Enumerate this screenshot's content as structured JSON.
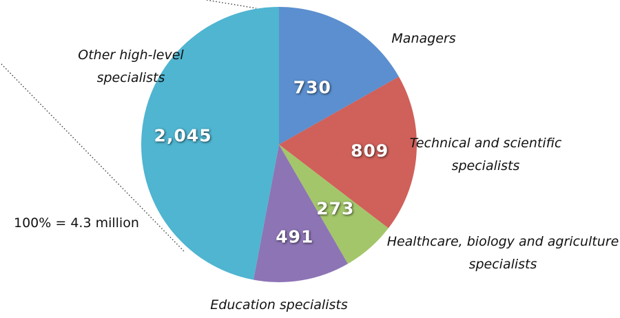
{
  "chart_data": {
    "type": "pie",
    "categories": [
      "Managers",
      "Technical and scientific specialists",
      "Healthcare, biology and agriculture specialists",
      "Education specialists",
      "Other high-level specialists"
    ],
    "values": [
      730,
      809,
      273,
      491,
      2045
    ],
    "value_labels": [
      "730",
      "809",
      "273",
      "491",
      "2,045"
    ],
    "colors": [
      "#5b8fcf",
      "#d0605a",
      "#a3c66a",
      "#8d74b5",
      "#4fb5d1"
    ],
    "annotation": "100% = 4.3 million"
  }
}
